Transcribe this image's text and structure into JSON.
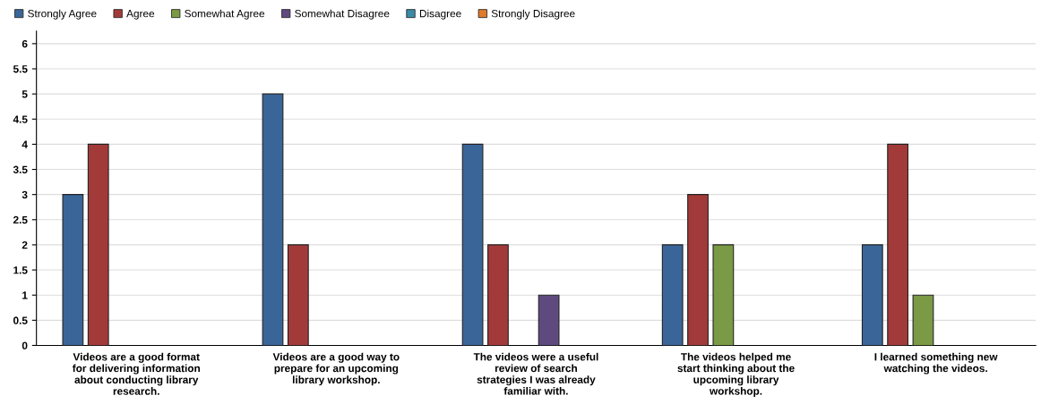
{
  "chart_data": {
    "type": "bar",
    "categories": [
      "Videos are a good format\nfor delivering information\nabout conducting library\nresearch.",
      "Videos are a good way to\nprepare for an upcoming\nlibrary workshop.",
      "The videos were a useful\nreview of search\nstrategies I was already\nfamiliar with.",
      "The videos helped me\nstart thinking about the\nupcoming library\nworkshop.",
      "I learned something new\nwatching the videos."
    ],
    "series": [
      {
        "name": "Strongly Agree",
        "color": "#3a6598",
        "values": [
          3,
          5,
          4,
          2,
          2
        ]
      },
      {
        "name": "Agree",
        "color": "#a33a3a",
        "values": [
          4,
          2,
          2,
          3,
          4
        ]
      },
      {
        "name": "Somewhat Agree",
        "color": "#7a9a45",
        "values": [
          null,
          null,
          null,
          2,
          1
        ]
      },
      {
        "name": "Somewhat Disagree",
        "color": "#5f4a80",
        "values": [
          null,
          null,
          1,
          null,
          null
        ]
      },
      {
        "name": "Disagree",
        "color": "#3b8aa8",
        "values": [
          null,
          null,
          null,
          null,
          null
        ]
      },
      {
        "name": "Strongly Disagree",
        "color": "#e07b2a",
        "values": [
          null,
          null,
          null,
          null,
          null
        ]
      }
    ],
    "ylim": [
      0,
      6.25
    ],
    "yticks": [
      0,
      0.5,
      1,
      1.5,
      2,
      2.5,
      3,
      3.5,
      4,
      4.5,
      5,
      5.5,
      6
    ],
    "grid": "y",
    "legend": "top left"
  }
}
